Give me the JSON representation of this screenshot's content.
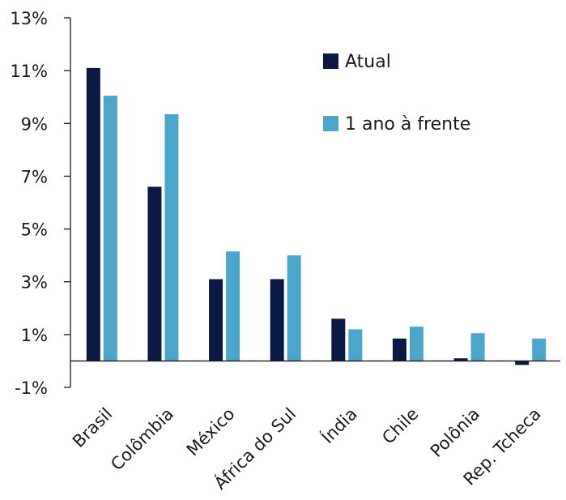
{
  "chart_data": {
    "type": "bar",
    "categories": [
      "Brasil",
      "Colômbia",
      "México",
      "África do Sul",
      "Índia",
      "Chile",
      "Polônia",
      "Rep. Tcheca"
    ],
    "series": [
      {
        "name": "Atual",
        "color": "#0a1a45",
        "values": [
          11.1,
          6.6,
          3.1,
          3.1,
          1.6,
          0.85,
          0.1,
          -0.15
        ]
      },
      {
        "name": "1 ano à frente",
        "color": "#4ba6cc",
        "values": [
          10.05,
          9.35,
          4.15,
          4.0,
          1.2,
          1.3,
          1.05,
          0.85
        ]
      }
    ],
    "ylim": [
      -1,
      13
    ],
    "yticks": [
      -1,
      1,
      3,
      5,
      7,
      9,
      11,
      13
    ],
    "ytick_labels": [
      "-1%",
      "1%",
      "3%",
      "5%",
      "7%",
      "9%",
      "11%",
      "13%"
    ],
    "legend_position": "top-right",
    "grid": false
  }
}
